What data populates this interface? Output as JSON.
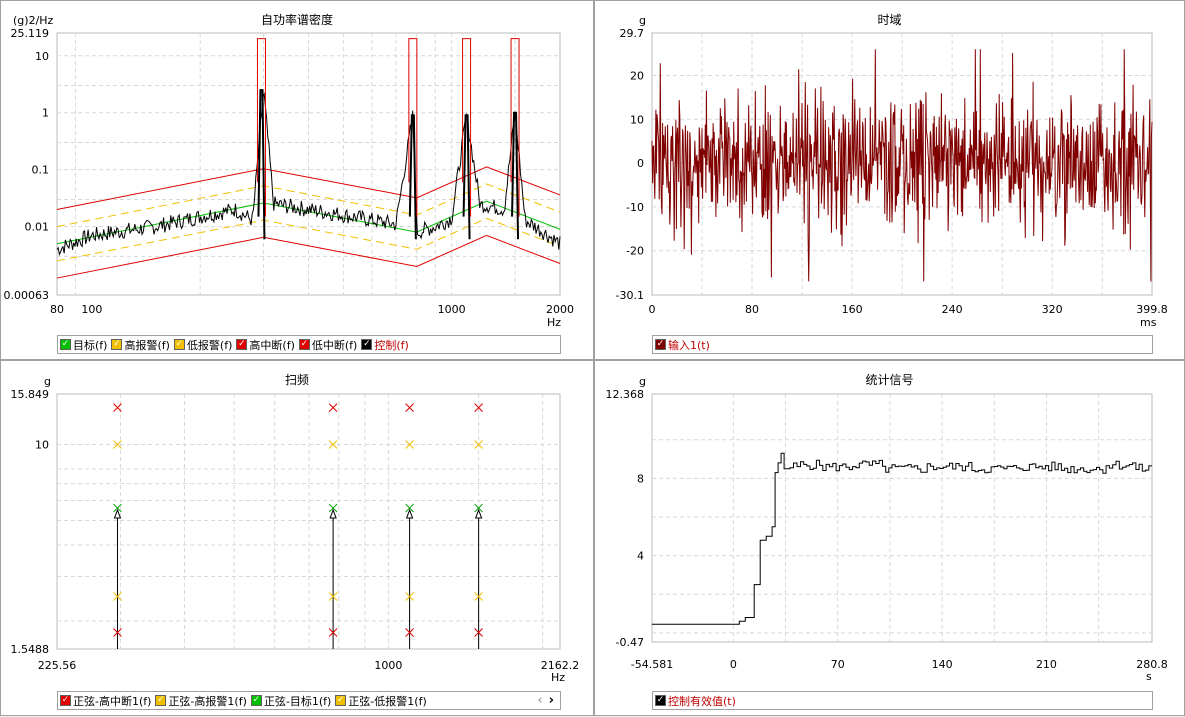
{
  "panels": {
    "psd": {
      "title": "自功率谱密度",
      "y_unit": "(g)2/Hz",
      "x_unit": "Hz",
      "y_ticks": [
        "25.119",
        "10",
        "1",
        "0.1",
        "0.01",
        "0.00063"
      ],
      "x_ticks": [
        "80",
        "100",
        "1000",
        "2000"
      ],
      "legend": [
        {
          "label": "目标(f)",
          "color": "#00c000",
          "text_color": "#000000"
        },
        {
          "label": "高报警(f)",
          "color": "#f0c000",
          "text_color": "#000000"
        },
        {
          "label": "低报警(f)",
          "color": "#f0c000",
          "text_color": "#000000"
        },
        {
          "label": "高中断(f)",
          "color": "#e00000",
          "text_color": "#000000"
        },
        {
          "label": "低中断(f)",
          "color": "#e00000",
          "text_color": "#000000"
        },
        {
          "label": "控制(f)",
          "color": "#000000",
          "text_color": "#c00000"
        }
      ]
    },
    "time": {
      "title": "时域",
      "y_unit": "g",
      "x_unit": "ms",
      "y_ticks": [
        "29.7",
        "20",
        "10",
        "0",
        "-10",
        "-20",
        "-30.1"
      ],
      "x_ticks": [
        "0",
        "80",
        "160",
        "240",
        "320",
        "399.8"
      ],
      "legend": [
        {
          "label": "输入1(t)",
          "color": "#800000",
          "text_color": "#c00000"
        }
      ]
    },
    "sweep": {
      "title": "扫频",
      "y_unit": "g",
      "x_unit": "Hz",
      "y_ticks": [
        "15.849",
        "10",
        "1.5488"
      ],
      "x_ticks": [
        "225.56",
        "1000",
        "2162.2"
      ],
      "legend": [
        {
          "label": "正弦-高中断1(f)",
          "color": "#e00000",
          "text_color": "#000000"
        },
        {
          "label": "正弦-高报警1(f)",
          "color": "#f0c000",
          "text_color": "#000000"
        },
        {
          "label": "正弦-目标1(f)",
          "color": "#00c000",
          "text_color": "#000000"
        },
        {
          "label": "正弦-低报警1(f)",
          "color": "#f0c000",
          "text_color": "#000000"
        }
      ],
      "nav_prev": "‹",
      "nav_next": "›"
    },
    "stats": {
      "title": "统计信号",
      "y_unit": "g",
      "x_unit": "s",
      "y_ticks": [
        "12.368",
        "8",
        "4",
        "-0.47"
      ],
      "x_ticks": [
        "-54.581",
        "0",
        "70",
        "140",
        "210",
        "280.8"
      ],
      "legend": [
        {
          "label": "控制有效值(t)",
          "color": "#000000",
          "text_color": "#c00000"
        }
      ]
    }
  },
  "chart_data": [
    {
      "type": "line",
      "title": "自功率谱密度",
      "xlabel": "Hz",
      "ylabel": "(g)2/Hz",
      "x_scale": "log",
      "y_scale": "log",
      "xlim": [
        80,
        2000
      ],
      "ylim": [
        0.00063,
        25.119
      ],
      "series": [
        {
          "name": "目标(f)",
          "x": [
            80,
            300,
            800,
            1250,
            2000
          ],
          "y": [
            0.005,
            0.026,
            0.008,
            0.028,
            0.009
          ]
        },
        {
          "name": "高报警(f)",
          "x": [
            80,
            300,
            800,
            1250,
            2000
          ],
          "y": [
            0.01,
            0.052,
            0.016,
            0.056,
            0.018
          ]
        },
        {
          "name": "低报警(f)",
          "x": [
            80,
            300,
            800,
            1250,
            2000
          ],
          "y": [
            0.0025,
            0.013,
            0.004,
            0.014,
            0.0045
          ]
        },
        {
          "name": "高中断(f)",
          "x": [
            80,
            300,
            800,
            1250,
            2000
          ],
          "y": [
            0.02,
            0.104,
            0.032,
            0.112,
            0.036
          ]
        },
        {
          "name": "低中断(f)",
          "x": [
            80,
            300,
            800,
            1250,
            2000
          ],
          "y": [
            0.00125,
            0.0065,
            0.002,
            0.007,
            0.00225
          ]
        },
        {
          "name": "控制(f)",
          "x": [
            80,
            100,
            150,
            200,
            250,
            280,
            300,
            320,
            400,
            500,
            600,
            700,
            780,
            800,
            900,
            1000,
            1100,
            1200,
            1250,
            1400,
            1500,
            1600,
            1800,
            2000
          ],
          "y": [
            0.004,
            0.007,
            0.01,
            0.015,
            0.02,
            0.013,
            2.5,
            0.025,
            0.02,
            0.016,
            0.013,
            0.011,
            0.9,
            0.008,
            0.01,
            0.014,
            0.9,
            0.024,
            0.024,
            0.02,
            1.0,
            0.013,
            0.008,
            0.005
          ]
        }
      ],
      "peaks_hz": [
        296,
        780,
        1100,
        1500
      ],
      "grid": true
    },
    {
      "type": "line",
      "title": "时域",
      "xlabel": "ms",
      "ylabel": "g",
      "xlim": [
        0,
        399.8
      ],
      "ylim": [
        -30.1,
        29.7
      ],
      "series": [
        {
          "name": "输入1(t)",
          "amplitude_rms": 8.5,
          "peak_max": 26,
          "peak_min": -27
        }
      ],
      "grid": true
    },
    {
      "type": "scatter",
      "title": "扫频",
      "xlabel": "Hz",
      "ylabel": "g",
      "x_scale": "log",
      "y_scale": "log",
      "xlim": [
        225.56,
        2162.2
      ],
      "ylim": [
        1.5488,
        15.849
      ],
      "x": [
        296,
        780,
        1100,
        1500
      ],
      "series": [
        {
          "name": "正弦-高中断1(f)",
          "values": [
            14,
            14,
            14,
            14
          ]
        },
        {
          "name": "正弦-高报警1(f)",
          "values": [
            10,
            10,
            10,
            10
          ]
        },
        {
          "name": "正弦-目标1(f)",
          "values": [
            5.6,
            5.6,
            5.6,
            5.6
          ]
        },
        {
          "name": "正弦-低报警1(f)",
          "values": [
            2.5,
            2.5,
            2.5,
            2.5
          ]
        },
        {
          "name": "",
          "values": [
            1.8,
            1.8,
            1.8,
            1.8
          ]
        }
      ],
      "control_values": [
        5.5,
        5.5,
        5.5,
        5.5
      ],
      "grid": true
    },
    {
      "type": "line",
      "title": "统计信号",
      "xlabel": "s",
      "ylabel": "g",
      "xlim": [
        -54.581,
        280.8
      ],
      "ylim": [
        -0.47,
        12.368
      ],
      "series": [
        {
          "name": "控制有效值(t)",
          "x": [
            -54.581,
            0,
            4,
            8,
            12,
            14,
            16,
            18,
            22,
            26,
            28,
            30,
            32,
            34,
            38,
            45,
            60,
            80,
            100,
            130,
            160,
            190,
            220,
            250,
            270,
            280.8
          ],
          "y": [
            0.45,
            0.45,
            0.6,
            0.8,
            0.8,
            2.5,
            2.5,
            4.8,
            5.0,
            5.5,
            8.3,
            8.8,
            9.3,
            8.5,
            8.6,
            8.7,
            8.6,
            8.7,
            8.5,
            8.6,
            8.5,
            8.6,
            8.5,
            8.7,
            8.5,
            8.4
          ]
        }
      ],
      "grid": true
    }
  ]
}
